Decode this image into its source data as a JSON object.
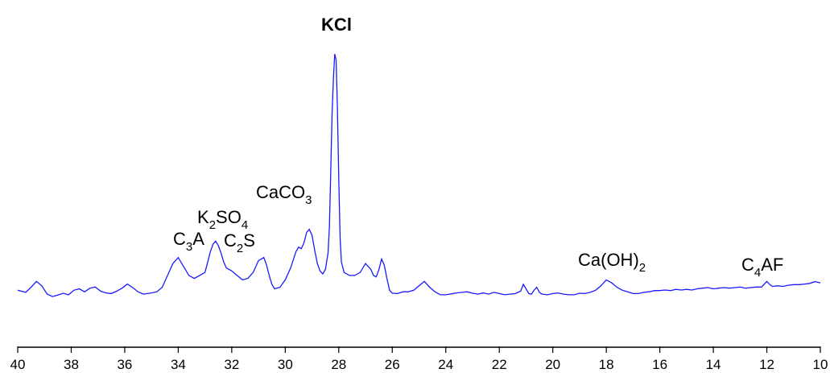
{
  "chart_data": {
    "type": "line",
    "title": "",
    "xlabel": "",
    "ylabel": "",
    "xlim": [
      40,
      10
    ],
    "x_reversed": true,
    "ylim": [
      0,
      100
    ],
    "y_axis_visible": false,
    "grid": false,
    "legend": "none",
    "x_ticks": [
      40,
      38,
      36,
      34,
      32,
      30,
      28,
      26,
      24,
      22,
      20,
      18,
      16,
      14,
      12,
      10
    ],
    "series": [
      {
        "color": "#1a1aff",
        "points": [
          [
            40.0,
            20.5
          ],
          [
            39.7,
            19.8
          ],
          [
            39.5,
            21.5
          ],
          [
            39.3,
            23.5
          ],
          [
            39.1,
            22.0
          ],
          [
            38.9,
            19.2
          ],
          [
            38.7,
            18.4
          ],
          [
            38.5,
            18.9
          ],
          [
            38.3,
            19.5
          ],
          [
            38.1,
            19.0
          ],
          [
            37.9,
            20.5
          ],
          [
            37.7,
            21.0
          ],
          [
            37.5,
            20.0
          ],
          [
            37.3,
            21.2
          ],
          [
            37.1,
            21.6
          ],
          [
            36.9,
            20.2
          ],
          [
            36.7,
            19.6
          ],
          [
            36.5,
            19.4
          ],
          [
            36.3,
            20.2
          ],
          [
            36.1,
            21.2
          ],
          [
            35.9,
            22.6
          ],
          [
            35.7,
            21.4
          ],
          [
            35.5,
            20.0
          ],
          [
            35.3,
            19.2
          ],
          [
            35.0,
            19.6
          ],
          [
            34.8,
            20.0
          ],
          [
            34.6,
            21.5
          ],
          [
            34.4,
            25.5
          ],
          [
            34.2,
            29.5
          ],
          [
            34.0,
            31.5
          ],
          [
            33.8,
            28.5
          ],
          [
            33.6,
            25.5
          ],
          [
            33.4,
            24.5
          ],
          [
            33.2,
            25.5
          ],
          [
            33.0,
            26.5
          ],
          [
            32.9,
            30.0
          ],
          [
            32.8,
            33.5
          ],
          [
            32.7,
            36.0
          ],
          [
            32.6,
            37.0
          ],
          [
            32.5,
            35.5
          ],
          [
            32.4,
            33.0
          ],
          [
            32.3,
            30.0
          ],
          [
            32.2,
            28.0
          ],
          [
            32.0,
            27.0
          ],
          [
            31.8,
            25.5
          ],
          [
            31.6,
            24.0
          ],
          [
            31.4,
            24.5
          ],
          [
            31.2,
            26.5
          ],
          [
            31.0,
            30.5
          ],
          [
            30.8,
            31.5
          ],
          [
            30.7,
            29.0
          ],
          [
            30.6,
            25.5
          ],
          [
            30.5,
            22.5
          ],
          [
            30.4,
            21.0
          ],
          [
            30.2,
            21.5
          ],
          [
            30.0,
            24.0
          ],
          [
            29.8,
            28.0
          ],
          [
            29.6,
            33.5
          ],
          [
            29.5,
            35.0
          ],
          [
            29.4,
            34.5
          ],
          [
            29.3,
            36.5
          ],
          [
            29.2,
            40.0
          ],
          [
            29.1,
            41.0
          ],
          [
            29.0,
            39.0
          ],
          [
            28.9,
            34.0
          ],
          [
            28.8,
            29.5
          ],
          [
            28.7,
            27.0
          ],
          [
            28.6,
            26.0
          ],
          [
            28.5,
            27.5
          ],
          [
            28.4,
            33.0
          ],
          [
            28.35,
            42.0
          ],
          [
            28.3,
            60.0
          ],
          [
            28.25,
            80.0
          ],
          [
            28.2,
            92.0
          ],
          [
            28.15,
            100.0
          ],
          [
            28.1,
            98.0
          ],
          [
            28.05,
            82.0
          ],
          [
            28.0,
            58.0
          ],
          [
            27.95,
            38.0
          ],
          [
            27.9,
            30.0
          ],
          [
            27.8,
            26.5
          ],
          [
            27.6,
            25.5
          ],
          [
            27.4,
            25.5
          ],
          [
            27.2,
            26.5
          ],
          [
            27.0,
            29.5
          ],
          [
            26.8,
            27.5
          ],
          [
            26.7,
            25.5
          ],
          [
            26.6,
            25.0
          ],
          [
            26.5,
            27.5
          ],
          [
            26.4,
            31.0
          ],
          [
            26.3,
            29.0
          ],
          [
            26.2,
            24.5
          ],
          [
            26.1,
            20.5
          ],
          [
            26.0,
            19.5
          ],
          [
            25.8,
            19.4
          ],
          [
            25.6,
            20.0
          ],
          [
            25.4,
            20.0
          ],
          [
            25.2,
            20.5
          ],
          [
            25.0,
            22.0
          ],
          [
            24.8,
            23.5
          ],
          [
            24.6,
            21.5
          ],
          [
            24.4,
            20.0
          ],
          [
            24.2,
            19.0
          ],
          [
            24.0,
            19.0
          ],
          [
            23.8,
            19.3
          ],
          [
            23.6,
            19.6
          ],
          [
            23.4,
            19.8
          ],
          [
            23.2,
            20.0
          ],
          [
            23.0,
            19.5
          ],
          [
            22.8,
            19.2
          ],
          [
            22.6,
            19.6
          ],
          [
            22.4,
            19.2
          ],
          [
            22.2,
            19.8
          ],
          [
            22.0,
            19.4
          ],
          [
            21.8,
            19.0
          ],
          [
            21.6,
            19.2
          ],
          [
            21.4,
            19.4
          ],
          [
            21.2,
            20.2
          ],
          [
            21.1,
            22.5
          ],
          [
            21.0,
            21.0
          ],
          [
            20.9,
            19.4
          ],
          [
            20.8,
            19.2
          ],
          [
            20.7,
            20.5
          ],
          [
            20.6,
            21.5
          ],
          [
            20.5,
            19.8
          ],
          [
            20.4,
            19.2
          ],
          [
            20.2,
            19.0
          ],
          [
            20.0,
            19.4
          ],
          [
            19.8,
            19.6
          ],
          [
            19.6,
            19.2
          ],
          [
            19.4,
            19.0
          ],
          [
            19.2,
            19.0
          ],
          [
            19.0,
            19.5
          ],
          [
            18.8,
            19.4
          ],
          [
            18.6,
            19.8
          ],
          [
            18.4,
            20.5
          ],
          [
            18.2,
            22.0
          ],
          [
            18.0,
            24.0
          ],
          [
            17.8,
            23.0
          ],
          [
            17.6,
            21.5
          ],
          [
            17.4,
            20.5
          ],
          [
            17.2,
            20.0
          ],
          [
            17.0,
            19.4
          ],
          [
            16.8,
            19.4
          ],
          [
            16.6,
            19.8
          ],
          [
            16.4,
            20.0
          ],
          [
            16.2,
            20.4
          ],
          [
            16.0,
            20.4
          ],
          [
            15.8,
            20.6
          ],
          [
            15.6,
            20.4
          ],
          [
            15.4,
            20.8
          ],
          [
            15.2,
            20.6
          ],
          [
            15.0,
            20.8
          ],
          [
            14.8,
            20.6
          ],
          [
            14.6,
            21.0
          ],
          [
            14.4,
            21.2
          ],
          [
            14.2,
            21.4
          ],
          [
            14.0,
            21.0
          ],
          [
            13.8,
            21.2
          ],
          [
            13.6,
            21.4
          ],
          [
            13.4,
            21.2
          ],
          [
            13.2,
            21.4
          ],
          [
            13.0,
            21.6
          ],
          [
            12.8,
            21.2
          ],
          [
            12.6,
            21.4
          ],
          [
            12.4,
            21.6
          ],
          [
            12.2,
            21.6
          ],
          [
            12.0,
            23.5
          ],
          [
            11.9,
            22.5
          ],
          [
            11.8,
            21.8
          ],
          [
            11.6,
            22.0
          ],
          [
            11.4,
            21.8
          ],
          [
            11.2,
            22.2
          ],
          [
            11.0,
            22.4
          ],
          [
            10.8,
            22.4
          ],
          [
            10.6,
            22.6
          ],
          [
            10.4,
            22.8
          ],
          [
            10.2,
            23.4
          ],
          [
            10.0,
            23.0
          ]
        ]
      }
    ],
    "annotations": [
      {
        "text": "KCl",
        "bold": true
      },
      {
        "text": "CaCO",
        "sub": "3"
      },
      {
        "text": "K",
        "sub": "2",
        "text2": "SO",
        "sub2": "4"
      },
      {
        "text": "C",
        "sub": "3",
        "text2": "A"
      },
      {
        "text": "C",
        "sub": "2",
        "text2": "S"
      },
      {
        "text": "Ca(OH)",
        "sub": "2"
      },
      {
        "text": "C",
        "sub": "4",
        "text2": "AF"
      }
    ]
  }
}
